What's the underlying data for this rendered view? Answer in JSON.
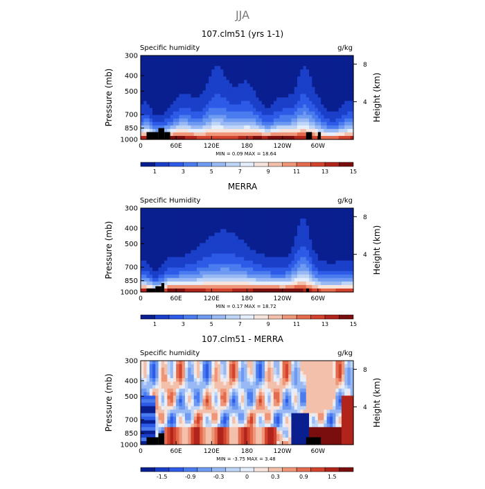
{
  "figure": {
    "title": "JJA",
    "colors": {
      "seq": [
        "#0a1f8f",
        "#1a3fc9",
        "#2d5ae6",
        "#4a7bef",
        "#6e9af1",
        "#98b9f4",
        "#bed5f7",
        "#e4eefc",
        "#f7e4dc",
        "#f3c0ab",
        "#ef9578",
        "#e46a4d",
        "#d2432e",
        "#b0241b",
        "#7a0d0d"
      ],
      "div": [
        "#0a1f8f",
        "#1a3fc9",
        "#2d5ae6",
        "#4a7bef",
        "#6e9af1",
        "#98b9f4",
        "#bed5f7",
        "#e4eefc",
        "#f7e4dc",
        "#f3c0ab",
        "#ef9578",
        "#e46a4d",
        "#d2432e",
        "#b0241b",
        "#7a0d0d"
      ],
      "terrain": "#000000"
    }
  },
  "chart_data": [
    {
      "type": "heatmap",
      "title": "107.clm51 (yrs 1-1)",
      "left_label": "Specific humidity",
      "units": "g/kg",
      "ylabel": "Pressure (mb)",
      "y2label": "Height (km)",
      "yticks": [
        "300",
        "400",
        "500",
        "700",
        "850",
        "1000"
      ],
      "ytick_values": [
        300,
        400,
        500,
        700,
        850,
        1000
      ],
      "y2ticks": [
        "8",
        "4"
      ],
      "y2tick_values": [
        8,
        4
      ],
      "xticks": [
        "0",
        "60E",
        "120E",
        "180",
        "120W",
        "60W"
      ],
      "xtick_values": [
        0,
        60,
        120,
        180,
        240,
        300
      ],
      "xlim": [
        0,
        360
      ],
      "ylim": [
        1000,
        300
      ],
      "stats": "MIN =    0.09   MAX =   18.64",
      "colorbar_labels": [
        "1",
        "3",
        "5",
        "7",
        "9",
        "11",
        "13",
        "15"
      ],
      "levels": [
        0,
        1,
        2,
        3,
        4,
        5,
        6,
        7,
        8,
        9,
        10,
        11,
        12,
        13,
        14,
        15
      ],
      "palette": "seq",
      "field": "q_model",
      "terrain": [
        [
          10,
          900,
          30
        ],
        [
          30,
          850,
          40
        ],
        [
          40,
          900,
          50
        ],
        [
          280,
          900,
          290
        ],
        [
          300,
          900,
          305
        ]
      ]
    },
    {
      "type": "heatmap",
      "title": "MERRA",
      "left_label": "Specific Humidity",
      "units": "g/kg",
      "ylabel": "Pressure (mb)",
      "y2label": "Height (km)",
      "yticks": [
        "300",
        "400",
        "500",
        "700",
        "850",
        "1000"
      ],
      "ytick_values": [
        300,
        400,
        500,
        700,
        850,
        1000
      ],
      "y2ticks": [
        "8",
        "4"
      ],
      "y2tick_values": [
        8,
        4
      ],
      "xticks": [
        "0",
        "60E",
        "120E",
        "180",
        "120W",
        "60W"
      ],
      "xtick_values": [
        0,
        60,
        120,
        180,
        240,
        300
      ],
      "xlim": [
        0,
        360
      ],
      "ylim": [
        1000,
        300
      ],
      "stats": "MIN =    0.17   MAX =   18.72",
      "colorbar_labels": [
        "1",
        "3",
        "5",
        "7",
        "9",
        "11",
        "13",
        "15"
      ],
      "levels": [
        0,
        1,
        2,
        3,
        4,
        5,
        6,
        7,
        8,
        9,
        10,
        11,
        12,
        13,
        14,
        15
      ],
      "palette": "seq",
      "field": "q_obs",
      "terrain": [
        [
          10,
          950,
          25
        ],
        [
          25,
          920,
          35
        ],
        [
          35,
          880,
          40
        ],
        [
          280,
          950,
          285
        ]
      ]
    },
    {
      "type": "heatmap",
      "title": "107.clm51 - MERRA",
      "left_label": "Specific humidity",
      "units": "g/kg",
      "ylabel": "Pressure (mb)",
      "y2label": "Height (km)",
      "yticks": [
        "300",
        "400",
        "500",
        "700",
        "850",
        "1000"
      ],
      "ytick_values": [
        300,
        400,
        500,
        700,
        850,
        1000
      ],
      "y2ticks": [
        "8",
        "4"
      ],
      "y2tick_values": [
        8,
        4
      ],
      "xticks": [
        "0",
        "60E",
        "120E",
        "180",
        "120W",
        "60W"
      ],
      "xtick_values": [
        0,
        60,
        120,
        180,
        240,
        300
      ],
      "xlim": [
        0,
        360
      ],
      "ylim": [
        1000,
        300
      ],
      "stats": "MIN =   -3.75   MAX =    3.48",
      "colorbar_labels": [
        "-1.5",
        "-0.9",
        "-0.3",
        "0",
        "0.3",
        "0.9",
        "1.5"
      ],
      "levels": [
        -2.1,
        -1.8,
        -1.5,
        -1.2,
        -0.9,
        -0.6,
        -0.3,
        -0.1,
        0.1,
        0.3,
        0.6,
        0.9,
        1.2,
        1.5,
        1.8,
        2.1
      ],
      "palette": "div",
      "field": "q_diff",
      "terrain": [
        [
          10,
          900,
          30
        ],
        [
          30,
          850,
          40
        ],
        [
          280,
          900,
          295
        ],
        [
          295,
          900,
          305
        ]
      ]
    }
  ]
}
